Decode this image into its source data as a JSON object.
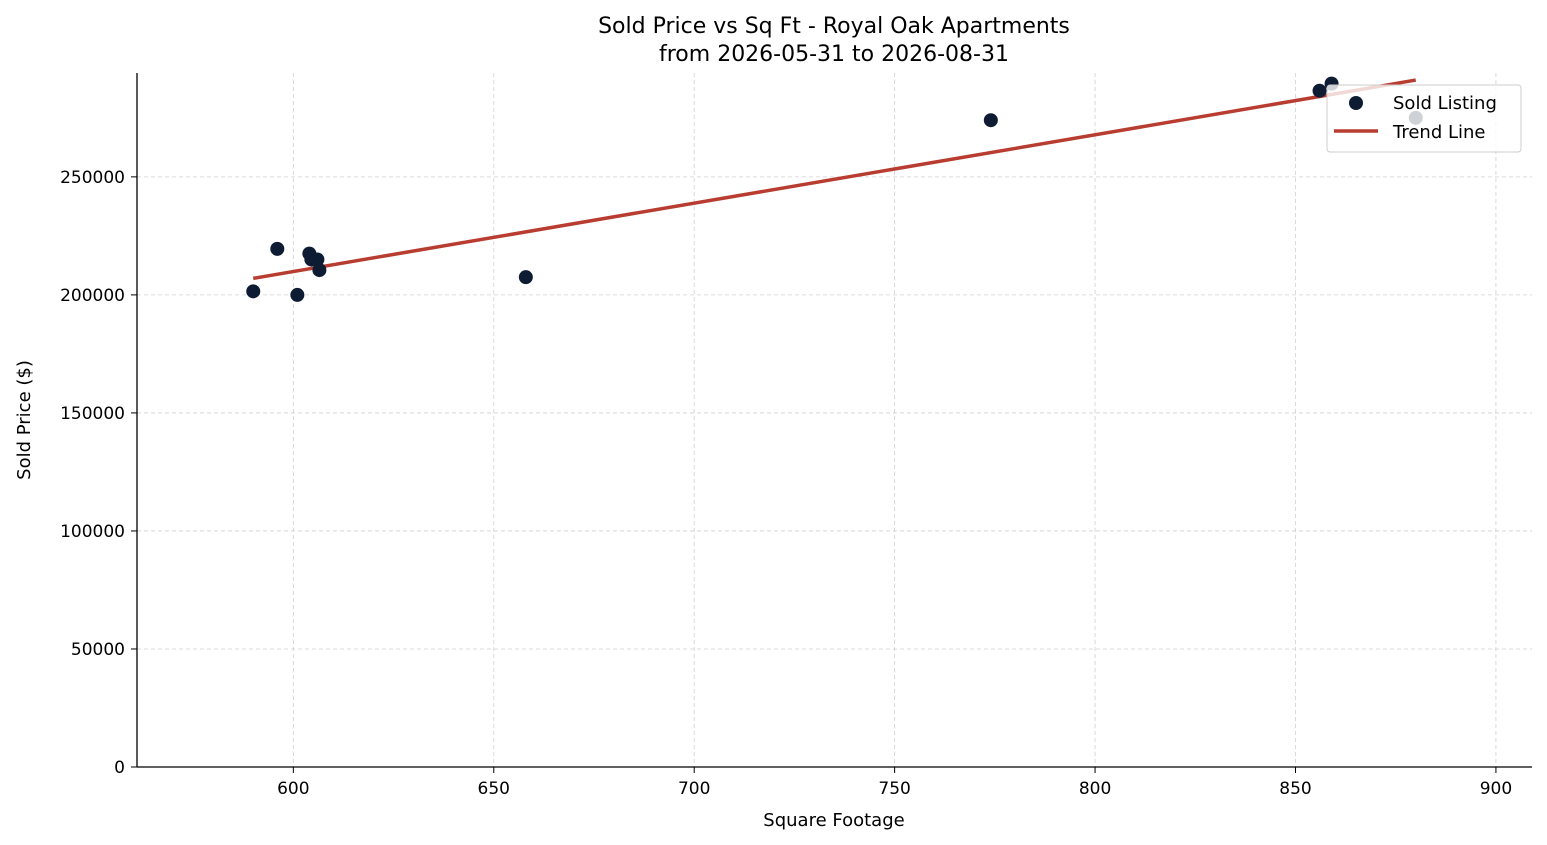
{
  "chart_data": {
    "type": "scatter",
    "title": "Sold Price vs Sq Ft - Royal Oak Apartments",
    "subtitle": "from 2026-05-31 to 2026-08-31",
    "xlabel": "Square Footage",
    "ylabel": "Sold Price ($)",
    "xlim": [
      561,
      909
    ],
    "ylim": [
      0,
      294000
    ],
    "xticks": [
      600,
      650,
      700,
      750,
      800,
      850,
      900
    ],
    "yticks": [
      0,
      50000,
      100000,
      150000,
      200000,
      250000
    ],
    "grid": true,
    "legend_position": "top-right",
    "series": [
      {
        "name": "Sold Listing",
        "type": "scatter",
        "color": "#0d1b33",
        "points": [
          {
            "x": 590,
            "y": 201500
          },
          {
            "x": 596,
            "y": 219500
          },
          {
            "x": 601,
            "y": 200000
          },
          {
            "x": 604,
            "y": 217500
          },
          {
            "x": 604.5,
            "y": 215000
          },
          {
            "x": 606,
            "y": 215000
          },
          {
            "x": 606.5,
            "y": 210500
          },
          {
            "x": 658,
            "y": 207500
          },
          {
            "x": 774,
            "y": 274000
          },
          {
            "x": 856,
            "y": 286500
          },
          {
            "x": 859,
            "y": 289500
          },
          {
            "x": 880,
            "y": 275000
          }
        ]
      },
      {
        "name": "Trend Line",
        "type": "line",
        "color": "#b83c30",
        "points": [
          {
            "x": 590,
            "y": 207000
          },
          {
            "x": 880,
            "y": 291000
          }
        ]
      }
    ]
  }
}
